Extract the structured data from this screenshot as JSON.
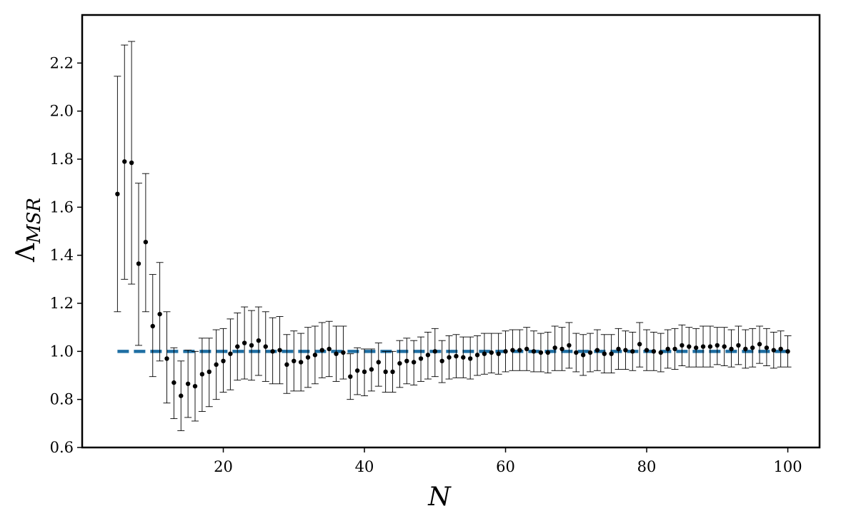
{
  "chart_data": {
    "type": "scatter",
    "title": "",
    "xlabel": "N",
    "ylabel_main": "Λ",
    "ylabel_sub": "MSR",
    "xlim": [
      0,
      104.5
    ],
    "ylim": [
      0.6,
      2.4
    ],
    "x_ticks": [
      20,
      40,
      60,
      80,
      100
    ],
    "y_ticks": [
      0.6,
      0.8,
      1.0,
      1.2,
      1.4,
      1.6,
      1.8,
      2.0,
      2.2
    ],
    "x_tick_labels": [
      "20",
      "40",
      "60",
      "80",
      "100"
    ],
    "y_tick_labels": [
      "0.6",
      "0.8",
      "1.0",
      "1.2",
      "1.4",
      "1.6",
      "1.8",
      "2.0",
      "2.2"
    ],
    "grid": false,
    "reference_line": {
      "y": 1.0,
      "style": "dashed",
      "color": "#1f6fa3"
    },
    "colors": {
      "points": "#000000",
      "errorbars": "#000000",
      "axes": "#000000"
    },
    "series": [
      {
        "x": [
          5,
          6,
          7,
          8,
          9,
          10,
          11,
          12,
          13,
          14,
          15,
          16,
          17,
          18,
          19,
          20,
          21,
          22,
          23,
          24,
          25,
          26,
          27,
          28,
          29,
          30,
          31,
          32,
          33,
          34,
          35,
          36,
          37,
          38,
          39,
          40,
          41,
          42,
          43,
          44,
          45,
          46,
          47,
          48,
          49,
          50,
          51,
          52,
          53,
          54,
          55,
          56,
          57,
          58,
          59,
          60,
          61,
          62,
          63,
          64,
          65,
          66,
          67,
          68,
          69,
          70,
          71,
          72,
          73,
          74,
          75,
          76,
          77,
          78,
          79,
          80,
          81,
          82,
          83,
          84,
          85,
          86,
          87,
          88,
          89,
          90,
          91,
          92,
          93,
          94,
          95,
          96,
          97,
          98,
          99,
          100
        ],
        "y": [
          1.655,
          1.79,
          1.785,
          1.365,
          1.455,
          1.105,
          1.155,
          0.97,
          0.87,
          0.815,
          0.865,
          0.855,
          0.905,
          0.915,
          0.945,
          0.96,
          0.99,
          1.02,
          1.035,
          1.025,
          1.045,
          1.02,
          1.0,
          1.005,
          0.945,
          0.96,
          0.955,
          0.975,
          0.985,
          1.005,
          1.01,
          0.99,
          0.995,
          0.895,
          0.92,
          0.915,
          0.925,
          0.955,
          0.915,
          0.915,
          0.95,
          0.96,
          0.955,
          0.97,
          0.985,
          1.0,
          0.96,
          0.975,
          0.98,
          0.975,
          0.97,
          0.985,
          0.99,
          0.995,
          0.99,
          1.0,
          1.005,
          1.005,
          1.01,
          1.0,
          0.995,
          0.995,
          1.015,
          1.01,
          1.025,
          0.995,
          0.985,
          0.995,
          1.005,
          0.99,
          0.99,
          1.01,
          1.005,
          1.0,
          1.03,
          1.005,
          1.0,
          0.995,
          1.01,
          1.01,
          1.025,
          1.02,
          1.015,
          1.02,
          1.02,
          1.025,
          1.02,
          1.01,
          1.025,
          1.01,
          1.015,
          1.03,
          1.015,
          1.005,
          1.01,
          1.0
        ],
        "err_low": [
          1.165,
          1.3,
          1.28,
          1.025,
          1.165,
          0.895,
          0.96,
          0.785,
          0.72,
          0.67,
          0.725,
          0.71,
          0.75,
          0.77,
          0.8,
          0.83,
          0.84,
          0.88,
          0.885,
          0.88,
          0.9,
          0.875,
          0.865,
          0.865,
          0.825,
          0.835,
          0.835,
          0.85,
          0.865,
          0.89,
          0.895,
          0.875,
          0.885,
          0.8,
          0.82,
          0.815,
          0.835,
          0.855,
          0.83,
          0.83,
          0.85,
          0.865,
          0.86,
          0.875,
          0.885,
          0.895,
          0.87,
          0.885,
          0.89,
          0.89,
          0.885,
          0.9,
          0.905,
          0.91,
          0.905,
          0.915,
          0.92,
          0.92,
          0.92,
          0.915,
          0.915,
          0.91,
          0.92,
          0.92,
          0.93,
          0.915,
          0.9,
          0.915,
          0.92,
          0.91,
          0.91,
          0.925,
          0.925,
          0.92,
          0.935,
          0.92,
          0.92,
          0.915,
          0.93,
          0.925,
          0.94,
          0.935,
          0.935,
          0.935,
          0.935,
          0.945,
          0.94,
          0.935,
          0.945,
          0.93,
          0.935,
          0.95,
          0.94,
          0.93,
          0.935,
          0.935
        ],
        "err_high": [
          2.145,
          2.275,
          2.29,
          1.7,
          1.74,
          1.32,
          1.37,
          1.165,
          1.015,
          0.96,
          1.005,
          1.0,
          1.055,
          1.055,
          1.09,
          1.095,
          1.135,
          1.16,
          1.185,
          1.17,
          1.185,
          1.165,
          1.14,
          1.145,
          1.07,
          1.085,
          1.075,
          1.1,
          1.105,
          1.12,
          1.125,
          1.105,
          1.105,
          0.99,
          1.015,
          1.01,
          1.01,
          1.035,
          1.0,
          1.0,
          1.045,
          1.055,
          1.045,
          1.06,
          1.08,
          1.095,
          1.045,
          1.065,
          1.07,
          1.06,
          1.06,
          1.065,
          1.075,
          1.075,
          1.075,
          1.085,
          1.09,
          1.09,
          1.1,
          1.085,
          1.075,
          1.08,
          1.105,
          1.1,
          1.12,
          1.075,
          1.07,
          1.075,
          1.09,
          1.07,
          1.07,
          1.095,
          1.085,
          1.08,
          1.12,
          1.09,
          1.08,
          1.075,
          1.09,
          1.095,
          1.11,
          1.1,
          1.095,
          1.105,
          1.105,
          1.1,
          1.1,
          1.09,
          1.105,
          1.09,
          1.095,
          1.105,
          1.095,
          1.08,
          1.085,
          1.065
        ]
      }
    ]
  }
}
